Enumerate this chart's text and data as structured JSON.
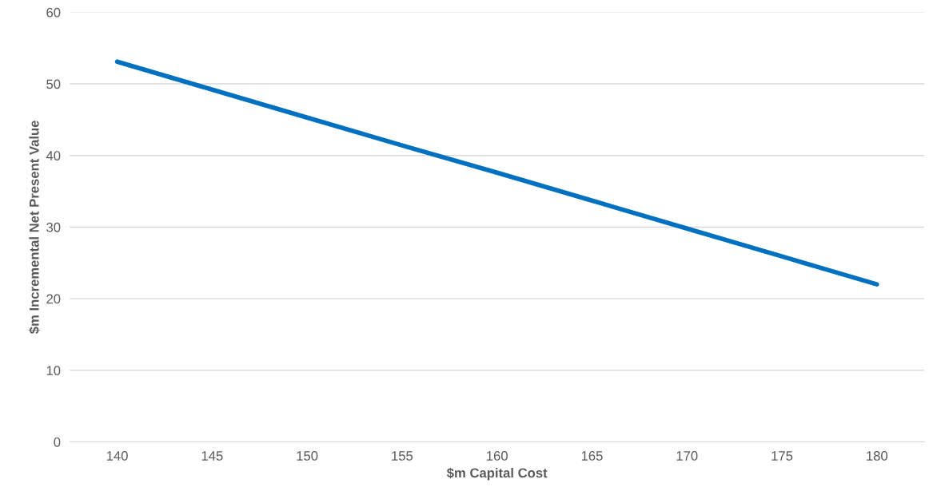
{
  "chart_data": {
    "type": "line",
    "xlabel": "$m Capital Cost",
    "ylabel": "$m Incremental Net Present Value",
    "categories": [
      "140",
      "145",
      "150",
      "155",
      "160",
      "165",
      "170",
      "175",
      "180"
    ],
    "series": [
      {
        "color": "#0070c0",
        "values": [
          53.1,
          49.2,
          45.3,
          41.4,
          37.6,
          33.7,
          29.8,
          25.9,
          22.0
        ]
      }
    ],
    "ylim": [
      0,
      60
    ],
    "yticks": [
      0,
      10,
      20,
      30,
      40,
      50,
      60
    ],
    "grid": "y",
    "marker": "none",
    "line_style": "solid"
  }
}
